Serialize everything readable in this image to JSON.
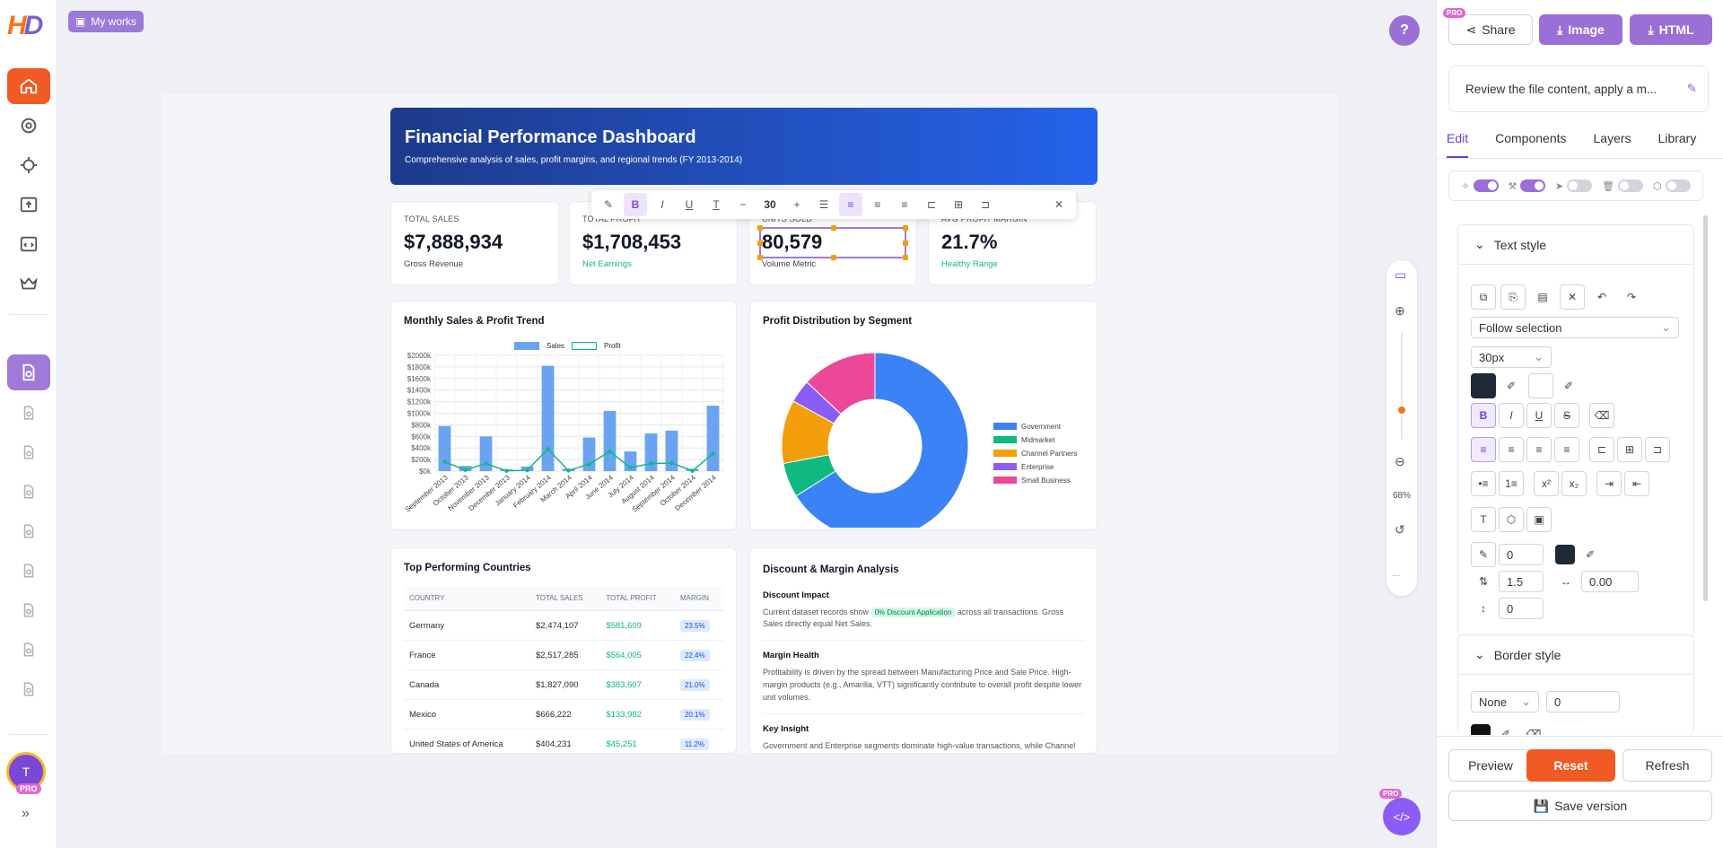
{
  "nav": {
    "my_works": "My works",
    "avatar_initial": "T",
    "pro_badge": "PRO"
  },
  "header": {
    "title": "Financial Performance Dashboard",
    "subtitle": "Comprehensive analysis of sales, profit margins, and regional trends (FY 2013-2014)"
  },
  "kpis": [
    {
      "label": "TOTAL SALES",
      "value": "$7,888,934",
      "sub": "Gross Revenue"
    },
    {
      "label": "TOTAL PROFIT",
      "value": "$1,708,453",
      "sub": "Net Earnings"
    },
    {
      "label": "UNITS SOLD",
      "value": "80,579",
      "sub": "Volume Metric"
    },
    {
      "label": "AVG PROFIT MARGIN",
      "value": "21.7%",
      "sub": "Healthy Range"
    }
  ],
  "format_toolbar": {
    "font_size": "30"
  },
  "charts": {
    "bar_title": "Monthly Sales & Profit Trend",
    "pie_title": "Profit Distribution by Segment",
    "legend_sales": "Sales",
    "legend_profit": "Profit"
  },
  "chart_data": [
    {
      "type": "bar",
      "title": "Monthly Sales & Profit Trend",
      "categories": [
        "September 2013",
        "October 2013",
        "November 2013",
        "December 2013",
        "January 2014",
        "February 2014",
        "March 2014",
        "April 2014",
        "June 2014",
        "July 2014",
        "August 2014",
        "September 2014",
        "October 2014",
        "December 2014"
      ],
      "series": [
        {
          "name": "Sales",
          "values": [
            780,
            90,
            600,
            30,
            80,
            1820,
            40,
            580,
            1040,
            340,
            650,
            700,
            40,
            1130
          ]
        },
        {
          "name": "Profit",
          "values": [
            160,
            20,
            130,
            5,
            15,
            380,
            10,
            120,
            340,
            60,
            130,
            140,
            5,
            300
          ]
        }
      ],
      "ylim": [
        0,
        2000
      ],
      "yticks": [
        "$0k",
        "$200k",
        "$400k",
        "$600k",
        "$800k",
        "$1000k",
        "$1200k",
        "$1400k",
        "$1600k",
        "$1800k",
        "$2000k"
      ]
    },
    {
      "type": "pie",
      "title": "Profit Distribution by Segment",
      "categories": [
        "Government",
        "Midmarket",
        "Channel Partners",
        "Enterprise",
        "Small Business"
      ],
      "values": [
        66,
        6,
        11,
        4,
        13
      ],
      "colors": [
        "#3b82f6",
        "#10b981",
        "#f59e0b",
        "#8b5cf6",
        "#ec4899"
      ]
    }
  ],
  "countries": {
    "title": "Top Performing Countries",
    "headers": [
      "COUNTRY",
      "TOTAL SALES",
      "TOTAL PROFIT",
      "MARGIN"
    ],
    "rows": [
      [
        "Germany",
        "$2,474,107",
        "$581,609",
        "23.5%"
      ],
      [
        "France",
        "$2,517,285",
        "$564,005",
        "22.4%"
      ],
      [
        "Canada",
        "$1,827,090",
        "$383,607",
        "21.0%"
      ],
      [
        "Mexico",
        "$666,222",
        "$133,982",
        "20.1%"
      ],
      [
        "United States of America",
        "$404,231",
        "$45,251",
        "11.2%"
      ]
    ]
  },
  "discount": {
    "title": "Discount & Margin Analysis",
    "impact_title": "Discount Impact",
    "impact_pre": "Current dataset records show",
    "impact_badge": "0% Discount Application",
    "impact_post": "across all transactions. Gross Sales directly equal Net Sales.",
    "health_title": "Margin Health",
    "health_text": "Profitability is driven by the spread between Manufacturing Price and Sale Price. High-margin products (e.g., Amarilla, VTT) significantly contribute to overall profit despite lower unit volumes.",
    "insight_title": "Key Insight",
    "insight_text": "Government and Enterprise segments dominate high-value transactions, while Channel"
  },
  "zoom": {
    "level": "68%"
  },
  "panel": {
    "share": "Share",
    "image": "Image",
    "html": "HTML",
    "prompt": "Review the file content, apply a m...",
    "tabs": [
      "Edit",
      "Components",
      "Layers",
      "Library"
    ],
    "text_style": "Text style",
    "follow": "Follow selection",
    "font_size": "30px",
    "stroke": "0",
    "line_height": "1.5",
    "letter_spacing": "0.00",
    "para_spacing": "0",
    "border_style": "Border style",
    "border_type": "None",
    "border_width": "0",
    "preview": "Preview",
    "reset": "Reset",
    "refresh": "Refresh",
    "save": "Save version"
  }
}
